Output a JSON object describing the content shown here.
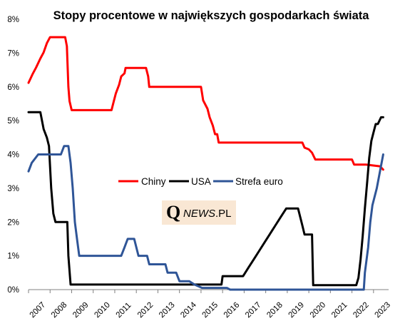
{
  "chart_data": {
    "type": "line",
    "title": "Stopy procentowe w największych gospodarkach świata",
    "xlabel": "",
    "ylabel": "",
    "xlim": [
      2007.0,
      2023.7
    ],
    "ylim": [
      0,
      8
    ],
    "yticks": [
      "0%",
      "1%",
      "2%",
      "3%",
      "4%",
      "5%",
      "6%",
      "7%",
      "8%"
    ],
    "xticks": [
      "2007",
      "2008",
      "2009",
      "2010",
      "2011",
      "2012",
      "2013",
      "2014",
      "2015",
      "2016",
      "2017",
      "2018",
      "2019",
      "2020",
      "2021",
      "2022",
      "2023"
    ],
    "grid": false,
    "legend_position": "center",
    "series": [
      {
        "name": "Chiny",
        "color": "#ff0000",
        "x": [
          2007.0,
          2007.2,
          2007.35,
          2007.55,
          2007.7,
          2007.85,
          2008.0,
          2008.7,
          2008.78,
          2008.85,
          2008.9,
          2009.0,
          2010.85,
          2010.95,
          2011.05,
          2011.2,
          2011.3,
          2011.45,
          2011.5,
          2012.45,
          2012.55,
          2012.6,
          2015.0,
          2015.1,
          2015.3,
          2015.4,
          2015.55,
          2015.65,
          2015.75,
          2015.82,
          2019.7,
          2019.8,
          2020.0,
          2020.15,
          2020.3,
          2022.0,
          2022.1,
          2022.65,
          2023.3,
          2023.45
        ],
        "y": [
          6.12,
          6.39,
          6.57,
          6.84,
          7.02,
          7.29,
          7.47,
          7.47,
          7.2,
          6.0,
          5.58,
          5.31,
          5.31,
          5.56,
          5.81,
          6.06,
          6.31,
          6.4,
          6.56,
          6.56,
          6.31,
          6.0,
          6.0,
          5.6,
          5.35,
          5.1,
          4.85,
          4.6,
          4.6,
          4.35,
          4.35,
          4.2,
          4.15,
          4.05,
          3.85,
          3.85,
          3.7,
          3.7,
          3.65,
          3.55
        ]
      },
      {
        "name": "USA",
        "color": "#000000",
        "x": [
          2007.0,
          2007.55,
          2007.7,
          2007.85,
          2007.95,
          2008.05,
          2008.15,
          2008.25,
          2008.3,
          2008.4,
          2008.8,
          2008.85,
          2008.95,
          2015.95,
          2016.0,
          2016.95,
          2017.2,
          2017.45,
          2017.7,
          2017.95,
          2018.2,
          2018.45,
          2018.7,
          2018.95,
          2019.5,
          2019.6,
          2019.7,
          2019.8,
          2020.15,
          2020.2,
          2022.2,
          2022.3,
          2022.4,
          2022.5,
          2022.6,
          2022.7,
          2022.8,
          2022.9,
          2023.0,
          2023.1,
          2023.2,
          2023.35,
          2023.45
        ],
        "y": [
          5.25,
          5.25,
          4.75,
          4.5,
          4.25,
          3.0,
          2.25,
          2.0,
          2.0,
          2.0,
          2.0,
          1.0,
          0.15,
          0.15,
          0.4,
          0.4,
          0.65,
          0.9,
          1.15,
          1.4,
          1.65,
          1.9,
          2.15,
          2.4,
          2.4,
          2.15,
          1.9,
          1.63,
          1.63,
          0.13,
          0.13,
          0.35,
          0.9,
          1.6,
          2.4,
          3.15,
          3.9,
          4.4,
          4.65,
          4.9,
          4.9,
          5.1,
          5.1
        ]
      },
      {
        "name": "Strefa euro",
        "color": "#2f5597",
        "x": [
          2007.0,
          2007.15,
          2007.45,
          2008.5,
          2008.65,
          2008.85,
          2008.95,
          2009.05,
          2009.15,
          2009.25,
          2009.35,
          2011.3,
          2011.45,
          2011.6,
          2011.9,
          2012.0,
          2012.1,
          2012.5,
          2012.6,
          2013.35,
          2013.45,
          2013.85,
          2014.0,
          2014.45,
          2014.7,
          2015.05,
          2015.2,
          2016.2,
          2016.35,
          2022.55,
          2022.6,
          2022.75,
          2022.85,
          2022.95,
          2023.15,
          2023.3,
          2023.45
        ],
        "y": [
          3.5,
          3.75,
          4.0,
          4.0,
          4.25,
          4.25,
          3.75,
          3.0,
          2.0,
          1.5,
          1.0,
          1.0,
          1.25,
          1.5,
          1.5,
          1.25,
          1.0,
          1.0,
          0.75,
          0.75,
          0.5,
          0.5,
          0.25,
          0.25,
          0.15,
          0.05,
          0.05,
          0.05,
          0.0,
          0.0,
          0.5,
          1.25,
          2.0,
          2.5,
          3.0,
          3.5,
          4.0
        ]
      }
    ]
  },
  "logo": {
    "q": "Q",
    "news": "NEWS",
    "pl": ".PL"
  }
}
